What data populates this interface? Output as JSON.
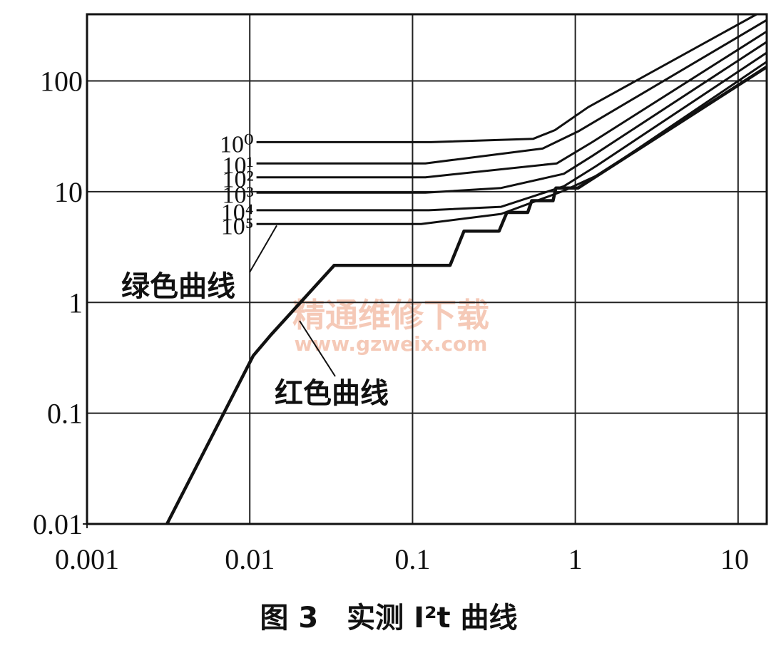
{
  "chart_data": {
    "type": "line",
    "title": "图 3　实测 I²t 曲线",
    "xscale": "log",
    "yscale": "log",
    "xlim": [
      0.001,
      15
    ],
    "ylim": [
      0.01,
      400
    ],
    "xticks": [
      0.001,
      0.01,
      0.1,
      1,
      10
    ],
    "yticks": [
      0.01,
      0.1,
      1,
      10,
      100
    ],
    "grid": true,
    "series": [
      {
        "name": "10⁰",
        "color": "#111111",
        "x": [
          0.011,
          0.13,
          0.55,
          0.75,
          1.2,
          13
        ],
        "values": [
          28,
          28,
          30,
          36,
          58,
          400
        ]
      },
      {
        "name": "10¹",
        "color": "#111111",
        "x": [
          0.011,
          0.12,
          0.63,
          1.04,
          15
        ],
        "values": [
          18,
          18,
          24.5,
          35,
          355
        ]
      },
      {
        "name": "10²",
        "color": "#111111",
        "x": [
          0.011,
          0.12,
          0.77,
          1.27,
          15
        ],
        "values": [
          13.5,
          13.5,
          18,
          28,
          280
        ]
      },
      {
        "name": "10³",
        "color": "#111111",
        "x": [
          0.011,
          0.12,
          0.35,
          0.85,
          1.27,
          15
        ],
        "values": [
          9.8,
          9.8,
          10.8,
          14.5,
          21,
          225
        ]
      },
      {
        "name": "10⁴",
        "color": "#111111",
        "x": [
          0.011,
          0.126,
          0.35,
          0.85,
          1.34,
          15
        ],
        "values": [
          6.8,
          6.8,
          7.3,
          11.2,
          17,
          180
        ]
      },
      {
        "name": "10⁵",
        "color": "#111111",
        "x": [
          0.011,
          0.113,
          0.35,
          0.85,
          1.43,
          15
        ],
        "values": [
          5.1,
          5.1,
          6.3,
          10.2,
          14.5,
          149
        ]
      },
      {
        "name": "红色曲线",
        "color": "#111111",
        "x": [
          0.0031,
          0.0105,
          0.0135,
          0.033,
          0.17,
          0.207,
          0.34,
          0.38,
          0.51,
          0.54,
          0.73,
          0.76,
          1.04,
          15
        ],
        "values": [
          0.01,
          0.33,
          0.51,
          2.16,
          2.16,
          4.4,
          4.4,
          6.5,
          6.5,
          8.3,
          8.3,
          10.8,
          10.8,
          134
        ]
      }
    ],
    "annotations": [
      "绿色曲线"
    ],
    "watermark": [
      "精通维修下载",
      "www.gzweix.com"
    ]
  }
}
